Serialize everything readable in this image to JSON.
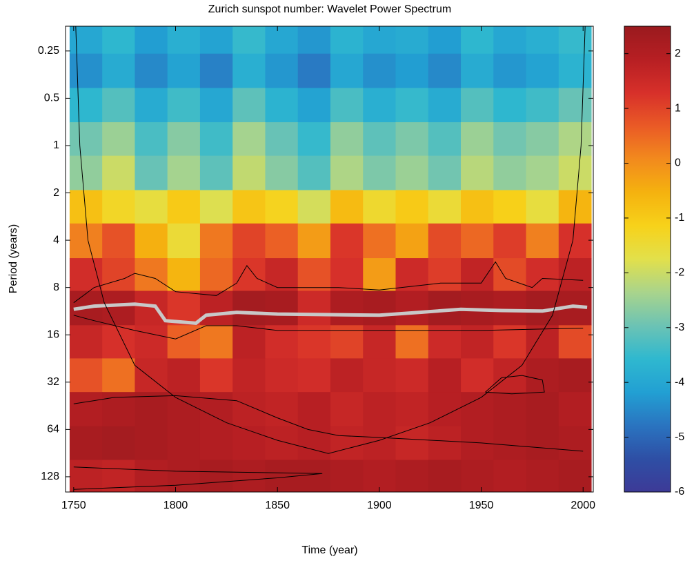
{
  "chart_data": {
    "type": "heatmap",
    "title": "Zurich sunspot number: Wavelet Power Spectrum",
    "xlabel": "Time (year)",
    "ylabel": "Period (years)",
    "xlim": [
      1746,
      2005
    ],
    "xticks": [
      1750,
      1800,
      1850,
      1900,
      1950,
      2000
    ],
    "ylim": [
      0.174,
      160
    ],
    "ylog": true,
    "yreverse": true,
    "yticks": [
      0.25,
      0.5,
      1,
      2,
      4,
      8,
      16,
      32,
      64,
      128
    ],
    "clim": [
      -6,
      2.5
    ],
    "cticks": [
      -6,
      -5,
      -4,
      -3,
      -2,
      -1,
      0,
      1,
      2
    ],
    "colormap": [
      "#3d3a97",
      "#2e4fa5",
      "#2a74c0",
      "#22a0d3",
      "#2fb8cf",
      "#6cc3b4",
      "#a9d48c",
      "#e2e04b",
      "#f7d21a",
      "#f5b20f",
      "#f28a1d",
      "#ea5a26",
      "#d7302a",
      "#b71f23",
      "#9a1a1e"
    ],
    "x_edges": [
      1748,
      1764,
      1780,
      1796,
      1812,
      1828,
      1844,
      1860,
      1876,
      1892,
      1908,
      1924,
      1940,
      1956,
      1972,
      1988,
      2004
    ],
    "y_edges": [
      0.174,
      0.26,
      0.43,
      0.71,
      1.16,
      1.92,
      3.13,
      5.2,
      8.4,
      13.9,
      22.6,
      37,
      61,
      100,
      160
    ],
    "z": [
      [
        -4,
        -3.6,
        -4.2,
        -3.8,
        -4.1,
        -3.5,
        -4,
        -4.3,
        -3.7,
        -4,
        -3.9,
        -4.2,
        -3.6,
        -4,
        -3.8,
        -3.5
      ],
      [
        -4.4,
        -3.9,
        -4.5,
        -4.1,
        -4.6,
        -3.8,
        -4.3,
        -4.7,
        -4,
        -4.4,
        -4.2,
        -4.5,
        -3.9,
        -4.3,
        -4.1,
        -3.7
      ],
      [
        -3.6,
        -3.2,
        -3.9,
        -3.4,
        -4,
        -3.1,
        -3.7,
        -4.1,
        -3.3,
        -3.8,
        -3.5,
        -3.9,
        -3.2,
        -3.6,
        -3.4,
        -3
      ],
      [
        -2.9,
        -2.5,
        -3.3,
        -2.7,
        -3.4,
        -2.4,
        -3,
        -3.5,
        -2.6,
        -3.1,
        -2.8,
        -3.2,
        -2.5,
        -2.9,
        -2.7,
        -2.3
      ],
      [
        -2.6,
        -2,
        -3,
        -2.4,
        -3.1,
        -2.1,
        -2.7,
        -3.2,
        -2.3,
        -2.8,
        -2.5,
        -2.9,
        -2.2,
        -2.6,
        -2.4,
        -2
      ],
      [
        -0.8,
        -1.3,
        -1.6,
        -1,
        -1.8,
        -0.9,
        -1.2,
        -1.9,
        -0.7,
        -1.4,
        -1,
        -1.5,
        -0.8,
        -1.1,
        -1.6,
        -0.6
      ],
      [
        0.2,
        0.8,
        -0.5,
        -1.5,
        0.3,
        1,
        0.6,
        -0.2,
        1.2,
        0.4,
        -0.3,
        0.9,
        0.5,
        1.1,
        0.2,
        1.3
      ],
      [
        1.4,
        1,
        0.3,
        -0.6,
        0.5,
        1.2,
        1.6,
        0.8,
        1.3,
        -0.2,
        1.5,
        1.1,
        1.7,
        0.9,
        1.4,
        1.8
      ],
      [
        2.2,
        2.1,
        1.6,
        1.2,
        1.8,
        2.3,
        2.2,
        1.5,
        2.1,
        2.2,
        2,
        2.3,
        2.2,
        2.1,
        2.3,
        2.2
      ],
      [
        1.6,
        1.3,
        1.5,
        0.6,
        0.3,
        1.8,
        1.4,
        1.2,
        1,
        1.6,
        0.4,
        1.5,
        1.7,
        1.2,
        1.8,
        0.9
      ],
      [
        0.8,
        0.4,
        1.6,
        1.8,
        1.2,
        1.7,
        1.5,
        1.4,
        1.8,
        1.6,
        1.5,
        1.9,
        1.4,
        1.7,
        2.1,
        2.2
      ],
      [
        2,
        2.1,
        2.2,
        2.1,
        2,
        1.8,
        1.7,
        1.9,
        1.6,
        1.8,
        1.7,
        1.9,
        2,
        2.1,
        2.2,
        2
      ],
      [
        2.2,
        2.3,
        2.2,
        2.1,
        2,
        1.9,
        1.8,
        1.9,
        1.7,
        1.8,
        1.6,
        1.8,
        2,
        2.1,
        2.2,
        2.1
      ],
      [
        1.8,
        1.7,
        2,
        2.1,
        2.2,
        2.1,
        2.2,
        2.2,
        2.1,
        2,
        2.1,
        2.2,
        2.1,
        2,
        2.1,
        2.2
      ]
    ],
    "lines": [
      {
        "color": "#c8c8c8",
        "width": 5,
        "x": [
          1750,
          1760,
          1780,
          1790,
          1795,
          1810,
          1815,
          1830,
          1850,
          1900,
          1920,
          1940,
          1960,
          1980,
          1995,
          2002
        ],
        "y": [
          11,
          10.5,
          10.2,
          10.5,
          13,
          13.5,
          12,
          11.5,
          11.8,
          12,
          11.5,
          11,
          11.2,
          11.3,
          10.5,
          10.7
        ]
      },
      {
        "color": "#000000",
        "width": 1,
        "x": [
          1751,
          1753,
          1757,
          1765,
          1780,
          1800,
          1825,
          1850,
          1875,
          1900,
          1925,
          1950,
          1970,
          1985,
          1995,
          1999,
          2001
        ],
        "y": [
          0.174,
          1,
          4,
          10,
          25,
          40,
          58,
          75,
          91,
          75,
          58,
          40,
          25,
          12,
          4,
          1,
          0.174
        ]
      },
      {
        "color": "#000000",
        "width": 1,
        "x": [
          1750,
          1760,
          1775,
          1780,
          1790,
          1800,
          1820,
          1830,
          1835,
          1840,
          1850,
          1880,
          1900,
          1930,
          1950,
          1957,
          1962,
          1975,
          1980,
          2000
        ],
        "y": [
          10,
          8,
          7,
          6.5,
          7,
          8.5,
          9,
          7.5,
          5.8,
          7,
          8,
          8,
          8.3,
          7.5,
          7.5,
          5.5,
          7,
          8,
          7,
          7.2
        ]
      },
      {
        "color": "#000000",
        "width": 1,
        "x": [
          1750,
          1760,
          1780,
          1800,
          1815,
          1830,
          1850,
          1900,
          1950,
          2000
        ],
        "y": [
          12,
          13,
          15,
          17,
          14,
          14,
          15,
          15,
          15,
          14.5
        ]
      },
      {
        "color": "#000000",
        "width": 1,
        "x": [
          1750,
          1770,
          1800,
          1830,
          1850,
          1865,
          1880,
          1900,
          1950,
          2000
        ],
        "y": [
          44,
          40,
          39,
          42,
          54,
          64,
          70,
          72,
          78,
          88
        ]
      },
      {
        "color": "#000000",
        "width": 1,
        "x": [
          1750,
          1800,
          1872,
          1850,
          1800,
          1750
        ],
        "y": [
          111,
          118,
          122,
          130,
          145,
          154
        ]
      },
      {
        "color": "#000000",
        "width": 1,
        "x": [
          1952,
          1960,
          1970,
          1980,
          1981,
          1965,
          1952
        ],
        "y": [
          37,
          30,
          29,
          31,
          37,
          38,
          37
        ]
      }
    ]
  }
}
